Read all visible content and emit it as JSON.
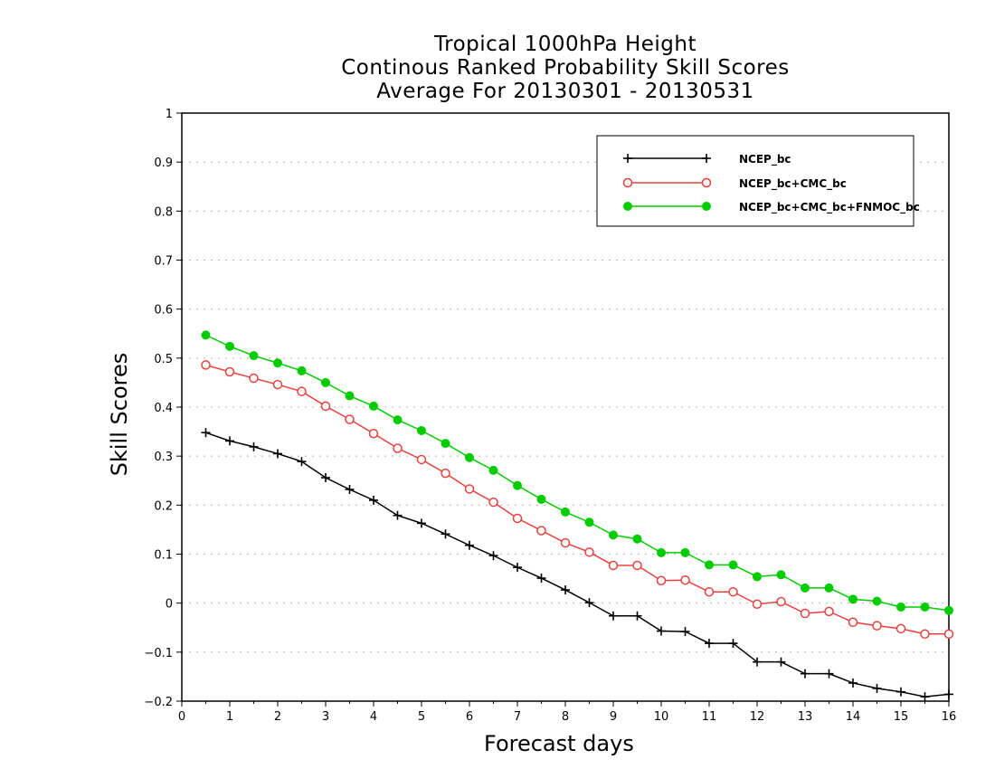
{
  "chart_data": {
    "type": "line",
    "title": [
      "Tropical 1000hPa Height",
      "Continous Ranked Probability Skill Scores",
      "Average For 20130301 - 20130531"
    ],
    "xlabel": "Forecast days",
    "ylabel": "Skill Scores",
    "xlim": [
      0,
      16
    ],
    "ylim": [
      -0.2,
      1
    ],
    "x_ticks": [
      "0",
      "1",
      "2",
      "3",
      "4",
      "5",
      "6",
      "7",
      "8",
      "9",
      "10",
      "11",
      "12",
      "13",
      "14",
      "15",
      "16"
    ],
    "y_ticks": [
      "−0.2",
      "−0.1",
      "0",
      "0.1",
      "0.2",
      "0.3",
      "0.4",
      "0.5",
      "0.6",
      "0.7",
      "0.8",
      "0.9",
      "1"
    ],
    "grid": "horizontal dotted",
    "legend_position": "top-right",
    "x": [
      0.5,
      1,
      1.5,
      2,
      2.5,
      3,
      3.5,
      4,
      4.5,
      5,
      5.5,
      6,
      6.5,
      7,
      7.5,
      8,
      8.5,
      9,
      9.5,
      10,
      10.5,
      11,
      11.5,
      12,
      12.5,
      13,
      13.5,
      14,
      14.5,
      15,
      15.5,
      16
    ],
    "series": [
      {
        "name": "NCEP_bc",
        "color": "#000000",
        "marker": "plus",
        "values": [
          0.348,
          0.331,
          0.319,
          0.305,
          0.289,
          0.256,
          0.232,
          0.21,
          0.179,
          0.163,
          0.141,
          0.118,
          0.097,
          0.073,
          0.051,
          0.027,
          0.001,
          -0.026,
          -0.026,
          -0.057,
          -0.058,
          -0.082,
          -0.082,
          -0.12,
          -0.12,
          -0.144,
          -0.144,
          -0.163,
          -0.174,
          -0.181,
          -0.191,
          -0.186
        ]
      },
      {
        "name": "NCEP_bc+CMC_bc",
        "color": "#e8403c",
        "marker": "open-circle",
        "values": [
          0.486,
          0.472,
          0.459,
          0.446,
          0.432,
          0.402,
          0.375,
          0.346,
          0.316,
          0.293,
          0.265,
          0.233,
          0.206,
          0.173,
          0.148,
          0.123,
          0.104,
          0.077,
          0.077,
          0.046,
          0.047,
          0.023,
          0.023,
          -0.002,
          0.003,
          -0.021,
          -0.017,
          -0.039,
          -0.046,
          -0.052,
          -0.063,
          -0.063
        ]
      },
      {
        "name": "NCEP_bc+CMC_bc+FNMOC_bc",
        "color": "#00cc00",
        "marker": "filled-circle",
        "values": [
          0.547,
          0.524,
          0.505,
          0.49,
          0.474,
          0.45,
          0.423,
          0.402,
          0.374,
          0.352,
          0.326,
          0.297,
          0.271,
          0.24,
          0.212,
          0.186,
          0.165,
          0.139,
          0.131,
          0.103,
          0.103,
          0.078,
          0.078,
          0.054,
          0.058,
          0.031,
          0.031,
          0.008,
          0.004,
          -0.008,
          -0.008,
          -0.015
        ]
      }
    ]
  }
}
